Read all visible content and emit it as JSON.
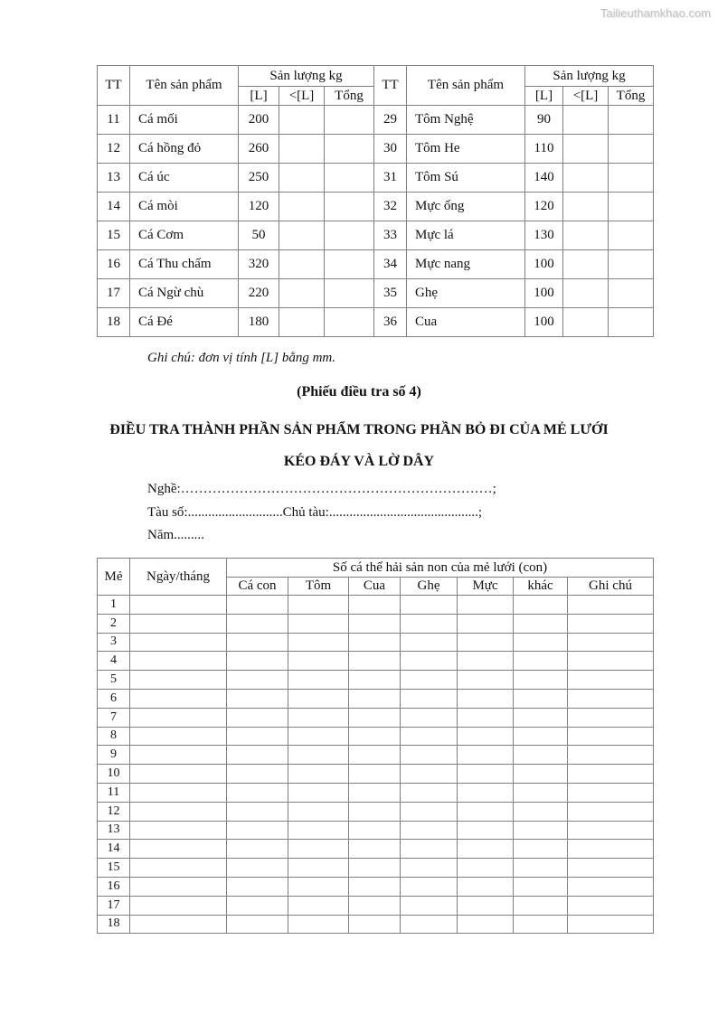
{
  "watermark": "Tailieuthamkhao.com",
  "table1": {
    "header": {
      "tt": "TT",
      "product": "Tên sản phẩm",
      "yield": "Sản lượng kg",
      "l": "[L]",
      "lt": "<[L]",
      "total": "Tổng"
    },
    "left_rows": [
      {
        "tt": "11",
        "name": "Cá mối",
        "l": "200",
        "lt": "",
        "total": ""
      },
      {
        "tt": "12",
        "name": "Cá hồng đỏ",
        "l": "260",
        "lt": "",
        "total": ""
      },
      {
        "tt": "13",
        "name": "Cá úc",
        "l": "250",
        "lt": "",
        "total": ""
      },
      {
        "tt": "14",
        "name": "Cá mòi",
        "l": "120",
        "lt": "",
        "total": ""
      },
      {
        "tt": "15",
        "name": "Cá Cơm",
        "l": "50",
        "lt": "",
        "total": ""
      },
      {
        "tt": "16",
        "name": "Cá Thu chấm",
        "l": "320",
        "lt": "",
        "total": ""
      },
      {
        "tt": "17",
        "name": "Cá Ngừ chù",
        "l": "220",
        "lt": "",
        "total": ""
      },
      {
        "tt": "18",
        "name": "Cá Đé",
        "l": "180",
        "lt": "",
        "total": ""
      }
    ],
    "right_rows": [
      {
        "tt": "29",
        "name": "Tôm Nghệ",
        "l": "90",
        "lt": "",
        "total": ""
      },
      {
        "tt": "30",
        "name": "Tôm He",
        "l": "110",
        "lt": "",
        "total": ""
      },
      {
        "tt": "31",
        "name": "Tôm Sú",
        "l": "140",
        "lt": "",
        "total": ""
      },
      {
        "tt": "32",
        "name": "Mực ống",
        "l": "120",
        "lt": "",
        "total": ""
      },
      {
        "tt": "33",
        "name": "Mực lá",
        "l": "130",
        "lt": "",
        "total": ""
      },
      {
        "tt": "34",
        "name": "Mực nang",
        "l": "100",
        "lt": "",
        "total": ""
      },
      {
        "tt": "35",
        "name": "Ghẹ",
        "l": "100",
        "lt": "",
        "total": ""
      },
      {
        "tt": "36",
        "name": "Cua",
        "l": "100",
        "lt": "",
        "total": ""
      }
    ]
  },
  "note": "Ghi chú: đơn vị tính [L] bằng mm.",
  "subtitle": "(Phiếu điều tra số 4)",
  "title_line1": "ĐIỀU TRA THÀNH PHẦN SẢN PHẨM TRONG PHẦN BỎ ĐI CỦA MẺ LƯỚI",
  "title_line2": "KÉO ĐÁY VÀ LỜ DÂY",
  "form": {
    "line1": "Nghề:……………………………………………………………;",
    "line2": "Tàu số:............................Chủ tàu:............................................;",
    "line3": "Năm........."
  },
  "table2": {
    "header": {
      "me": "Mẻ",
      "date": "Ngày/tháng",
      "group": "Số cá thể hải sản non của mẻ lưới (con)",
      "cols": [
        "Cá con",
        "Tôm",
        "Cua",
        "Ghẹ",
        "Mực",
        "khác",
        "Ghi chú"
      ]
    },
    "rows": [
      "1",
      "2",
      "3",
      "4",
      "5",
      "6",
      "7",
      "8",
      "9",
      "10",
      "11",
      "12",
      "13",
      "14",
      "15",
      "16",
      "17",
      "18"
    ]
  }
}
